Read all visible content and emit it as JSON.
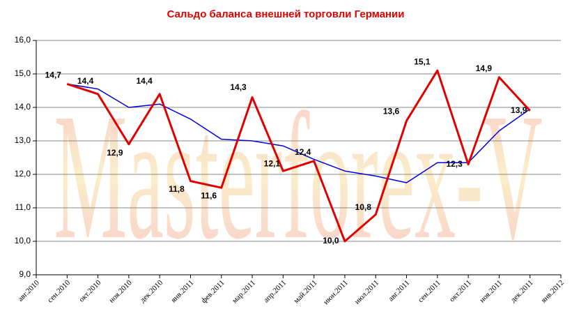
{
  "chart_data": {
    "type": "line",
    "title": "Сальдо баланса внешней торговли Германии",
    "watermark": "Masterforex-V",
    "categories": [
      "авг.2010",
      "сен.2010",
      "окт.2010",
      "ноя.2010",
      "дек.2010",
      "янв.2011",
      "фев.2011",
      "мар.2011",
      "апр.2011",
      "май.2011",
      "июн.2011",
      "июл.2011",
      "авг.2011",
      "сен.2011",
      "окт.2011",
      "ноя.2011",
      "дек.2011",
      "янв.2012"
    ],
    "series": [
      {
        "color": "#e00000",
        "values": [
          null,
          14.7,
          14.4,
          12.9,
          14.4,
          11.8,
          11.6,
          14.3,
          12.1,
          12.4,
          10.0,
          10.8,
          13.6,
          15.1,
          12.3,
          14.9,
          13.9,
          null
        ],
        "value_labels": [
          null,
          "14,7",
          "14,4",
          "12,9",
          "14,4",
          "11,8",
          "11,6",
          "14,3",
          "12,1",
          "12,4",
          "10,0",
          "10,8",
          "13,6",
          "15,1",
          "12,3",
          "14,9",
          "13,9",
          null
        ]
      },
      {
        "color": "#0000e0",
        "values": [
          null,
          14.7,
          14.55,
          14.0,
          14.1,
          13.65,
          13.05,
          13.0,
          12.85,
          12.45,
          12.1,
          11.95,
          11.75,
          12.35,
          12.35,
          13.3,
          13.95,
          null
        ]
      }
    ],
    "ylim": [
      9,
      16
    ],
    "yticks": [
      {
        "value": 9,
        "label": "9,0"
      },
      {
        "value": 10,
        "label": "10,0"
      },
      {
        "value": 11,
        "label": "11,0"
      },
      {
        "value": 12,
        "label": "12,0"
      },
      {
        "value": 13,
        "label": "13,0"
      },
      {
        "value": 14,
        "label": "14,0"
      },
      {
        "value": 15,
        "label": "15,0"
      },
      {
        "value": 16,
        "label": "16,0"
      }
    ],
    "grid": true
  }
}
